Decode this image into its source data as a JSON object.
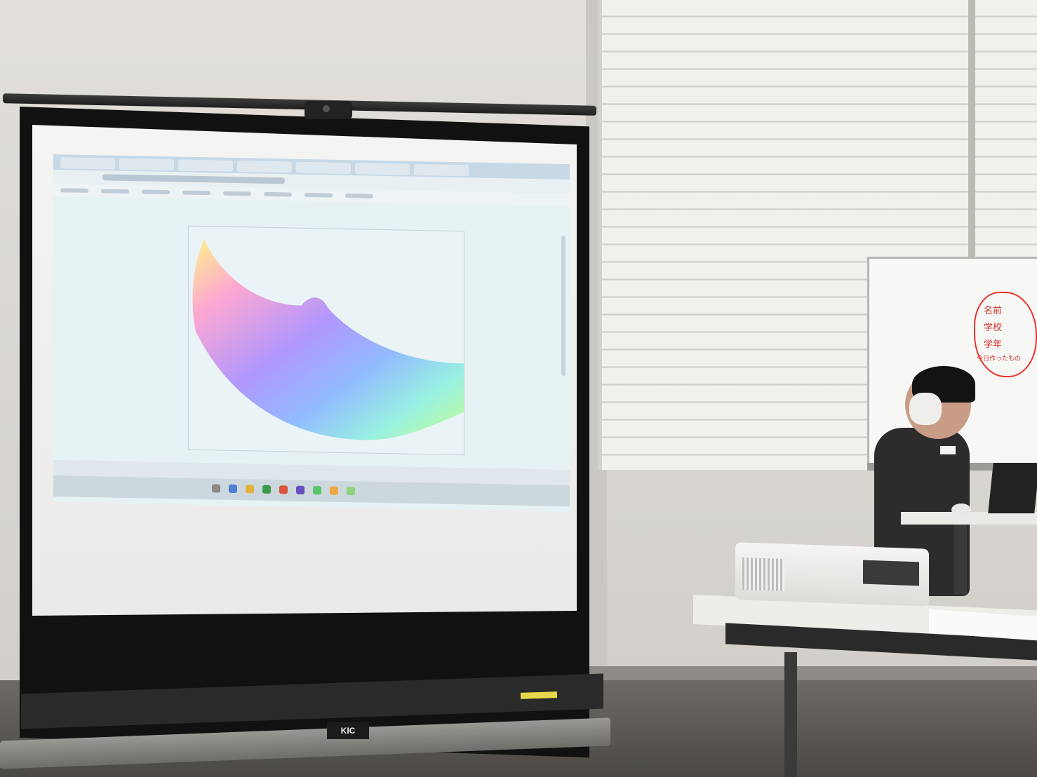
{
  "scene": {
    "description_free": true,
    "brand_label": "KIC"
  },
  "projection": {
    "figure_colors": [
      "#ff7fbf",
      "#b18cff",
      "#7fb0ff",
      "#8ff0e0",
      "#b8ff7a",
      "#fff27a"
    ]
  },
  "whiteboard": {
    "lines": [
      "名前",
      "学校",
      "学年",
      "今日作ったもの"
    ]
  },
  "colors": {
    "screen": "#f2f2f0",
    "marker": "#d0322a"
  }
}
